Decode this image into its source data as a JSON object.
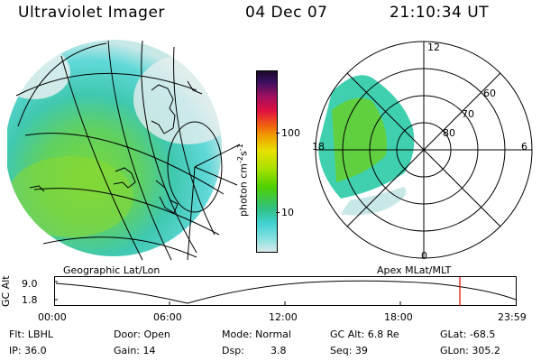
{
  "header": {
    "title": "Ultraviolet Imager",
    "date": "04 Dec 07",
    "time": "21:10:34 UT"
  },
  "colorbar": {
    "unit_label": "photon cm",
    "unit_sup1": "-2",
    "unit_s": "s",
    "unit_sup2": "-1",
    "tick_100": "100",
    "tick_10": "10",
    "colors_top_to_bottom": [
      "#1a0a2a",
      "#3a1060",
      "#a01060",
      "#e01040",
      "#f06010",
      "#f0a000",
      "#e8e000",
      "#a8e000",
      "#50d000",
      "#30c080",
      "#40d0d0",
      "#80e0e0",
      "#d8e8e8"
    ]
  },
  "polar_plot": {
    "labels": {
      "mlt_12": "12",
      "mlt_18": "18",
      "mlt_6": "6",
      "mlt_0": "0",
      "lat_60": "60",
      "lat_70": "70",
      "lat_80": "80"
    }
  },
  "panel_labels": {
    "geo": "Geographic Lat/Lon",
    "apex": "Apex MLat/MLT"
  },
  "altitude_strip": {
    "ylabel": "GC Alt",
    "y_top": "9.0",
    "y_bottom": "1.8",
    "x_ticks": [
      "00:00",
      "06:00",
      "12:00",
      "18:00",
      "23:59"
    ],
    "current_time_color": "#e00000"
  },
  "info": {
    "flt": "Flt: LBHL",
    "ip": "IP: 36.0",
    "door": "Door: Open",
    "gain": "Gain: 14",
    "mode": "Mode: Normal",
    "dsp_label": "Dsp:",
    "dsp_value": "3.8",
    "gcalt": "GC Alt: 6.8 Re",
    "seq": "Seq: 39",
    "glat": "GLat: -68.5",
    "glon": "GLon: 305.2"
  }
}
